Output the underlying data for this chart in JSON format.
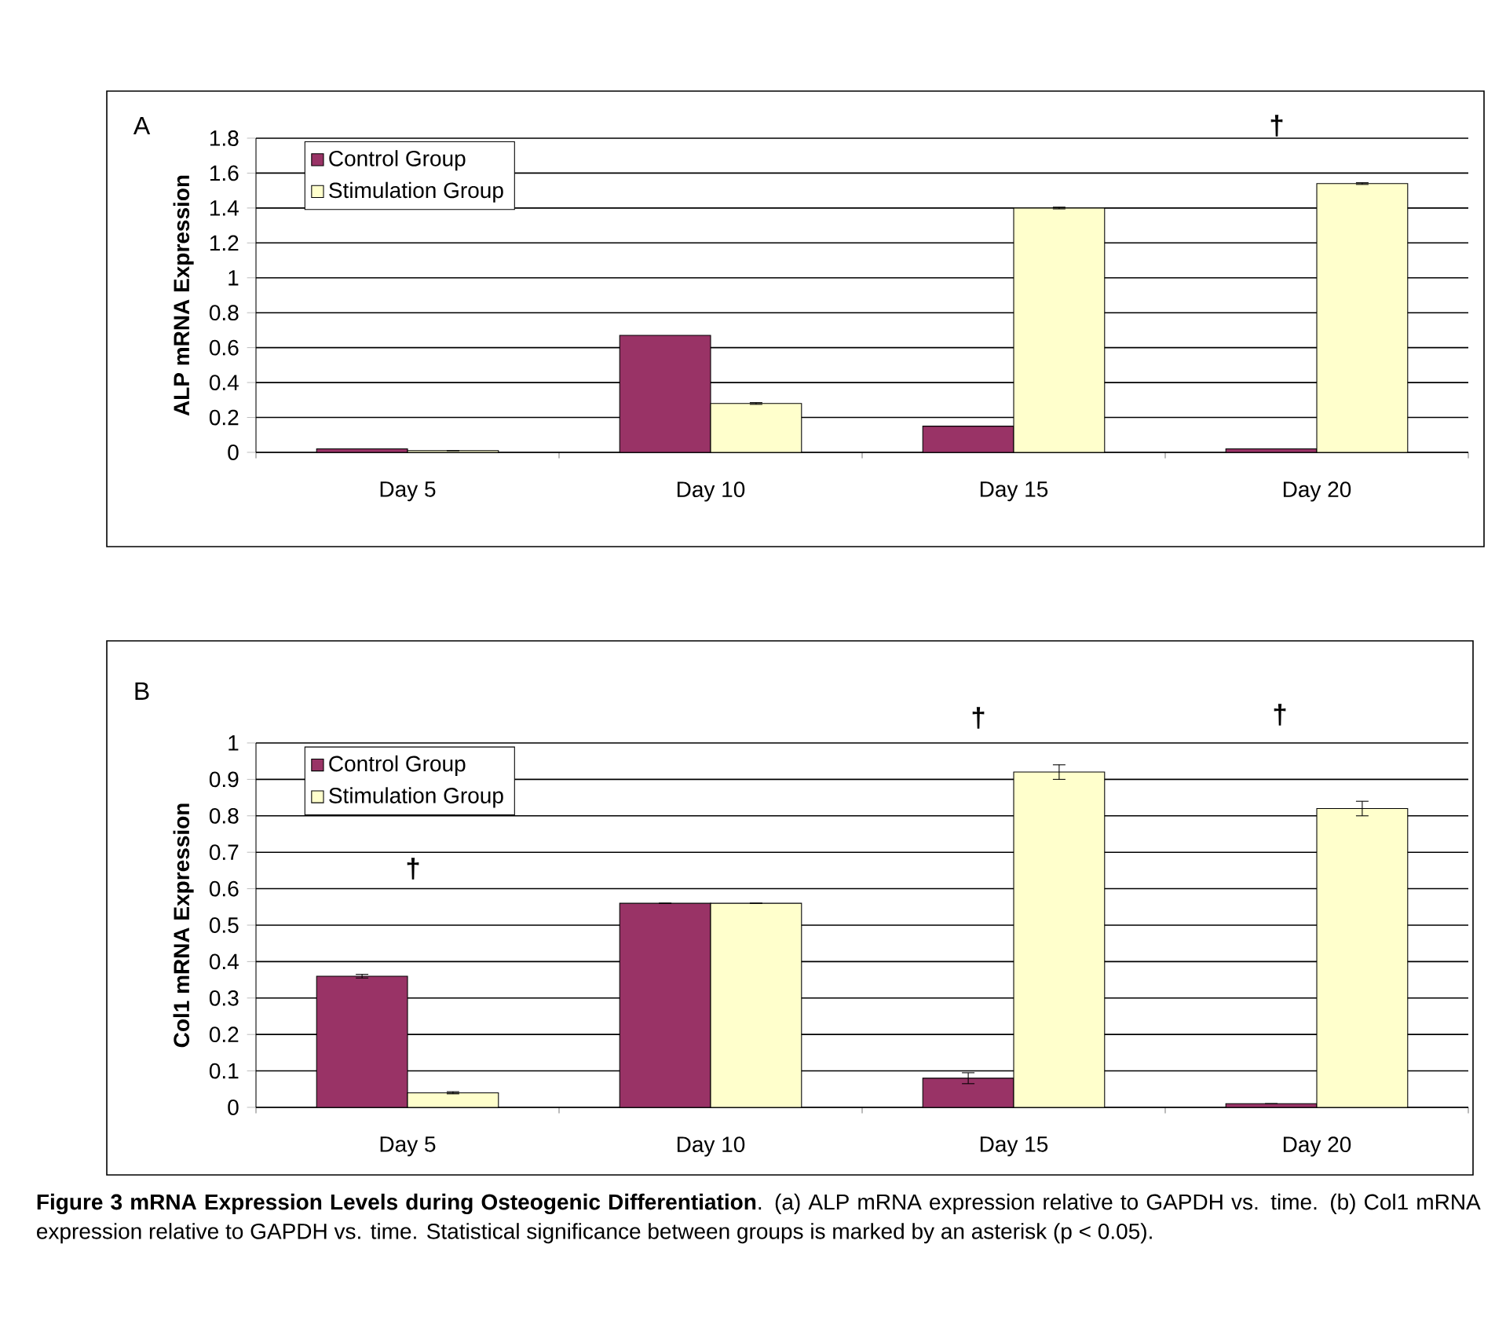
{
  "chart_data": [
    {
      "type": "bar",
      "title": "A",
      "ylabel": "ALP mRNA Expression",
      "categories": [
        "Day 5",
        "Day 10",
        "Day 15",
        "Day 20"
      ],
      "series": [
        {
          "name": "Control Group",
          "color": "#993366",
          "values": [
            0.02,
            0.67,
            0.15,
            0.02
          ]
        },
        {
          "name": "Stimulation Group",
          "color": "#ffffcc",
          "values": [
            0.01,
            0.28,
            1.4,
            1.54
          ],
          "errors": [
            null,
            0.005,
            0.005,
            0.005
          ]
        }
      ],
      "ylim": [
        0,
        1.8
      ],
      "yticks": [
        0,
        0.2,
        0.4,
        0.6,
        0.8,
        1,
        1.2,
        1.4,
        1.6,
        1.8
      ],
      "grid": "y",
      "legend": "top left",
      "annotations": [
        "†"
      ]
    },
    {
      "type": "bar",
      "title": "B",
      "ylabel": "Col1 mRNA Expression",
      "categories": [
        "Day 5",
        "Day 10",
        "Day 15",
        "Day 20"
      ],
      "series": [
        {
          "name": "Control Group",
          "color": "#993366",
          "values": [
            0.36,
            0.56,
            0.08,
            0.01
          ],
          "errors": [
            0.005,
            null,
            0.015,
            null
          ]
        },
        {
          "name": "Stimulation Group",
          "color": "#ffffcc",
          "values": [
            0.04,
            0.56,
            0.92,
            0.82
          ],
          "errors": [
            0.003,
            null,
            0.02,
            0.02
          ]
        }
      ],
      "ylim": [
        0,
        1
      ],
      "yticks": [
        0,
        0.1,
        0.2,
        0.3,
        0.4,
        0.5,
        0.6,
        0.7,
        0.8,
        0.9,
        1
      ],
      "grid": "y",
      "legend": "top left",
      "annotations": [
        "†",
        "†",
        "†",
        "**Figure 3 mRNA Expression Levels during Osteogenic Differentiation**. (a) ALP mRNA expression relative to GAPDH vs. time. (b) Col1 mRNA expression relative to GAPDH vs. time. Statistical significance between groups is marked by an asterisk (p < 0.05)."
      ]
    }
  ]
}
